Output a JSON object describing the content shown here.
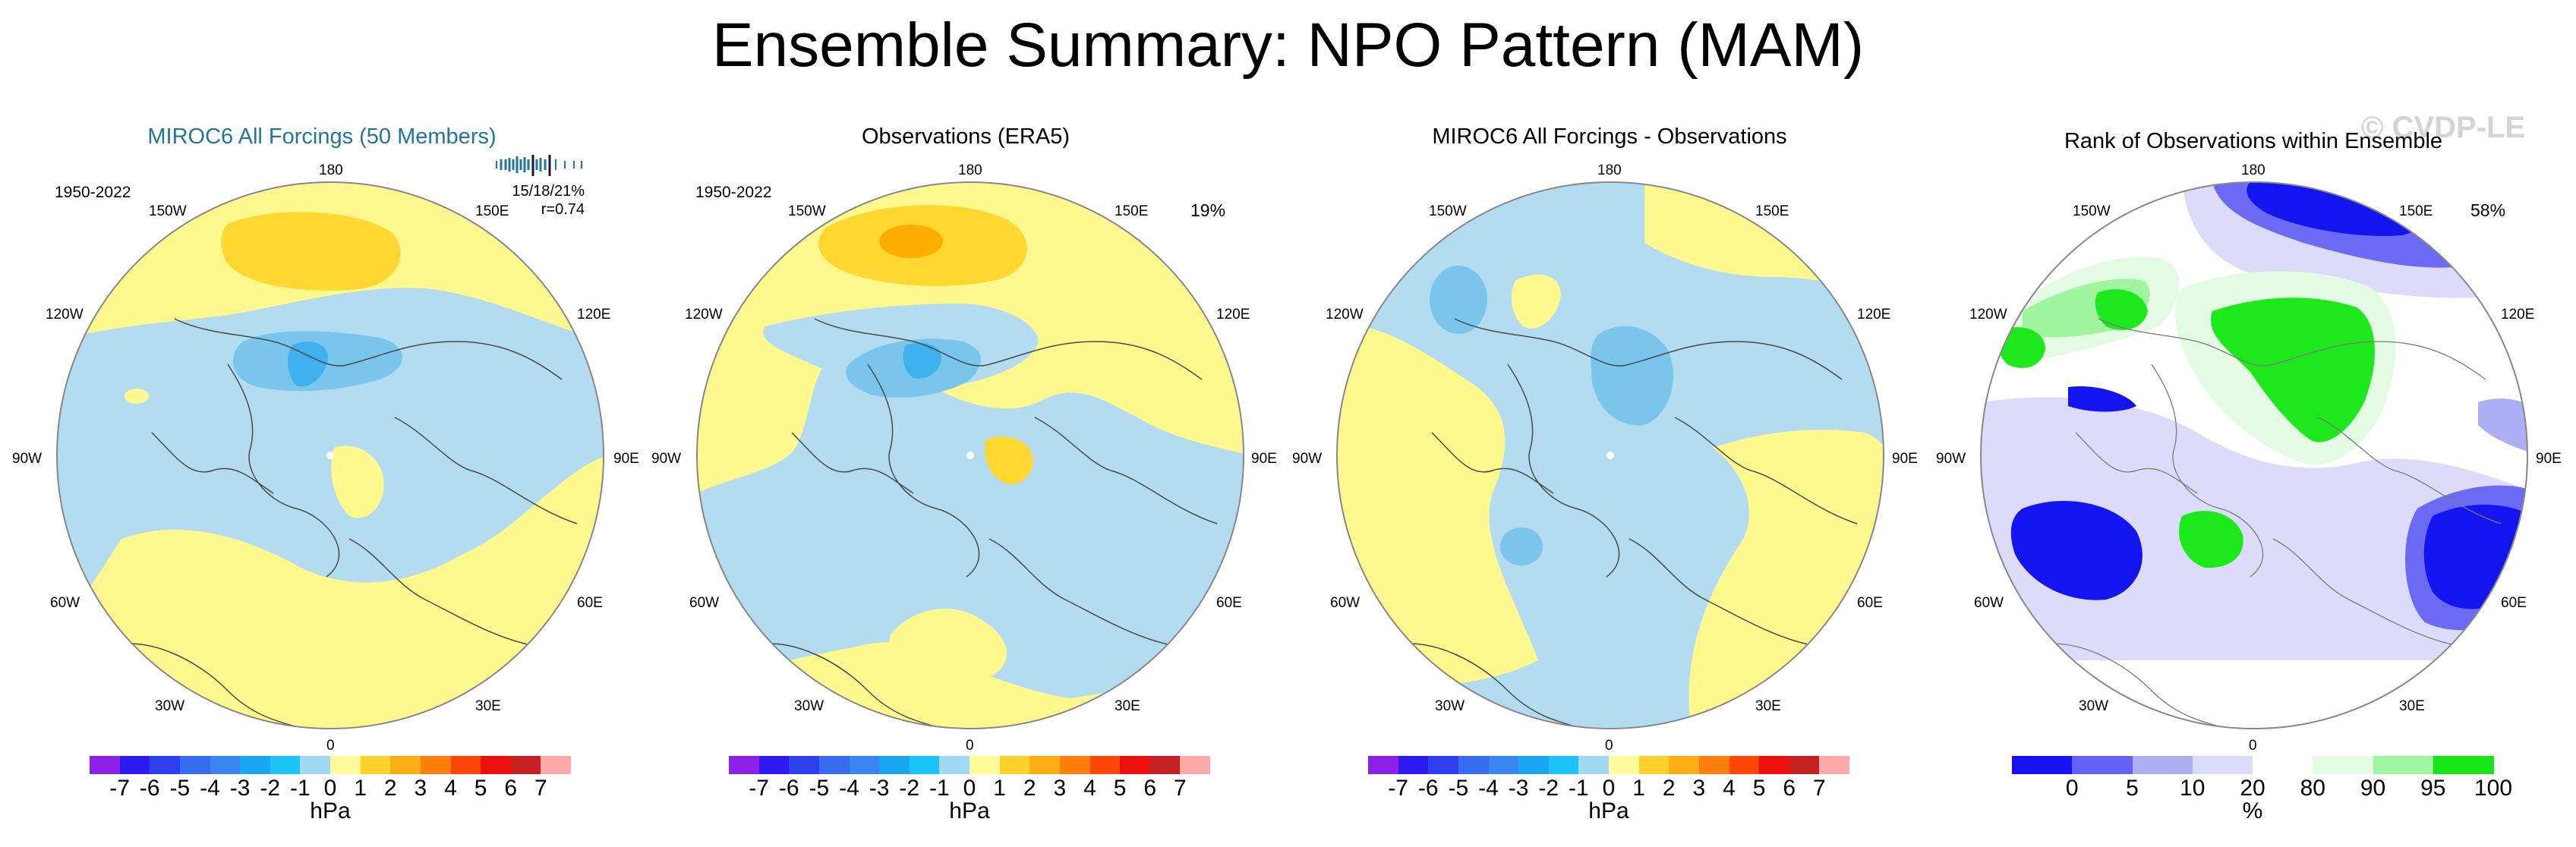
{
  "title": "Ensemble Summary: NPO Pattern (MAM)",
  "watermark": "© CVDP-LE",
  "colors": {
    "ocean_neg1": "#b3dcf1",
    "neg2": "#7ac5ec",
    "neg3": "#3fb2ee",
    "pos1": "#fff88e",
    "pos2": "#ffd730",
    "pos3": "#ffae00",
    "coast": "#4a4a4a",
    "rank_dark": "#1414f0",
    "rank_med": "#6a6af5",
    "rank_light": "#aeaef5",
    "rank_faint": "#dcdcfa",
    "green_faint": "#e2fbe2",
    "green_light": "#9ef59e",
    "green": "#1ce81c"
  },
  "longitude_labels": {
    "top": "180",
    "bottom": "0",
    "left": "90W",
    "right": "90E",
    "w150": "150W",
    "e150": "150E",
    "w120": "120W",
    "e120": "120E",
    "w60": "60W",
    "e60": "60E",
    "w30": "30W",
    "e30": "30E"
  },
  "panels": [
    {
      "title": "MIROC6 All Forcings (50 Members)",
      "period": "1950-2022",
      "stats_line1": "15/18/21%",
      "stats_line2": "r=0.74",
      "percent": ""
    },
    {
      "title": "Observations (ERA5)",
      "period": "1950-2022",
      "percent": "19%"
    },
    {
      "title": "MIROC6 All Forcings - Observations",
      "period": "",
      "percent": ""
    },
    {
      "title": "Rank of Observations within Ensemble",
      "period": "",
      "percent": "58%"
    }
  ],
  "colorbar_hpa": {
    "unit": "hPa",
    "labels": [
      "-7",
      "-6",
      "-5",
      "-4",
      "-3",
      "-2",
      "-1",
      "0",
      "1",
      "2",
      "3",
      "4",
      "5",
      "6",
      "7"
    ],
    "colors": [
      "#8b21e8",
      "#2d19f2",
      "#2e3ff0",
      "#386cf0",
      "#3a86f0",
      "#1aa6f0",
      "#1ec4f7",
      "#a1d9f4",
      "#fffb98",
      "#ffd22a",
      "#ffaf14",
      "#ff7e0c",
      "#ff4808",
      "#ee1010",
      "#c42122",
      "#ffaaaa"
    ]
  },
  "colorbar_rank": {
    "unit": "%",
    "labels": [
      "0",
      "5",
      "10",
      "20",
      "80",
      "90",
      "95",
      "100"
    ],
    "colors": [
      "#1a11f2",
      "#6462f5",
      "#aeaef2",
      "#dcdcfa",
      "#ffffff",
      "#e4fce4",
      "#a0f5a0",
      "#17e617"
    ]
  }
}
